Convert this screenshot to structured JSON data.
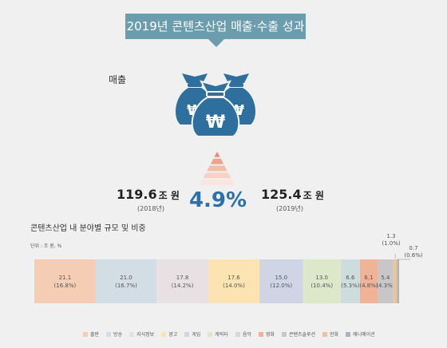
{
  "banner": {
    "title": "2019년 콘텐츠산업 매출·수출 성과"
  },
  "sales": {
    "label": "매출",
    "icon": "money-bags-won-icon",
    "prev_value": "119.6",
    "prev_unit": "조 원",
    "prev_year": "(2018년)",
    "curr_value": "125.4",
    "curr_unit": "조 원",
    "curr_year": "(2019년)",
    "growth": "4.9%",
    "growth_color": "#2f70a8",
    "accent_color": "#2e6f9e",
    "pyramid_colors": [
      "#e98a6f",
      "#eea48a",
      "#f2bca8",
      "#f6d3c6",
      "#f9e5dd"
    ]
  },
  "chart_title": "콘텐츠산업 내 분야별 규모 및 비중",
  "unit_note": "단위 : 조 원, %",
  "chart_data": {
    "type": "bar",
    "orientation": "horizontal-stacked",
    "title": "콘텐츠산업 내 분야별 규모 및 비중",
    "unit": "조 원, %",
    "legend_position": "bottom",
    "segments": [
      {
        "name": "출판",
        "value": 21.1,
        "value_label": "21.1",
        "share_label": "(16.8%)",
        "color": "#f5cdb4"
      },
      {
        "name": "방송",
        "value": 21.0,
        "value_label": "21.0",
        "share_label": "(16.7%)",
        "color": "#d3dde6"
      },
      {
        "name": "지식정보",
        "value": 17.8,
        "value_label": "17.8",
        "share_label": "(14.2%)",
        "color": "#e7e1e4"
      },
      {
        "name": "광고",
        "value": 17.6,
        "value_label": "17.6",
        "share_label": "(14.0%)",
        "color": "#fbe4b1"
      },
      {
        "name": "게임",
        "value": 15.0,
        "value_label": "15.0",
        "share_label": "(12.0%)",
        "color": "#d0d5e6"
      },
      {
        "name": "캐릭터",
        "value": 13.0,
        "value_label": "13.0",
        "share_label": "(10.4%)",
        "color": "#dde7c9"
      },
      {
        "name": "음악",
        "value": 6.6,
        "value_label": "6.6",
        "share_label": "(5.3%)",
        "color": "#cfdcde"
      },
      {
        "name": "영화",
        "value": 6.1,
        "value_label": "6.1",
        "share_label": "(4.8%)",
        "color": "#f1b398"
      },
      {
        "name": "콘텐츠솔루션",
        "value": 5.4,
        "value_label": "5.4",
        "share_label": "(4.3%)",
        "color": "#c8c6c9"
      },
      {
        "name": "만화",
        "value": 1.3,
        "value_label": "1.3",
        "share_label": "(1.0%)",
        "color": "#e9c59b"
      },
      {
        "name": "애니메이션",
        "value": 0.7,
        "value_label": "0.7",
        "share_label": "(0.6%)",
        "color": "#adb3ba"
      }
    ]
  }
}
